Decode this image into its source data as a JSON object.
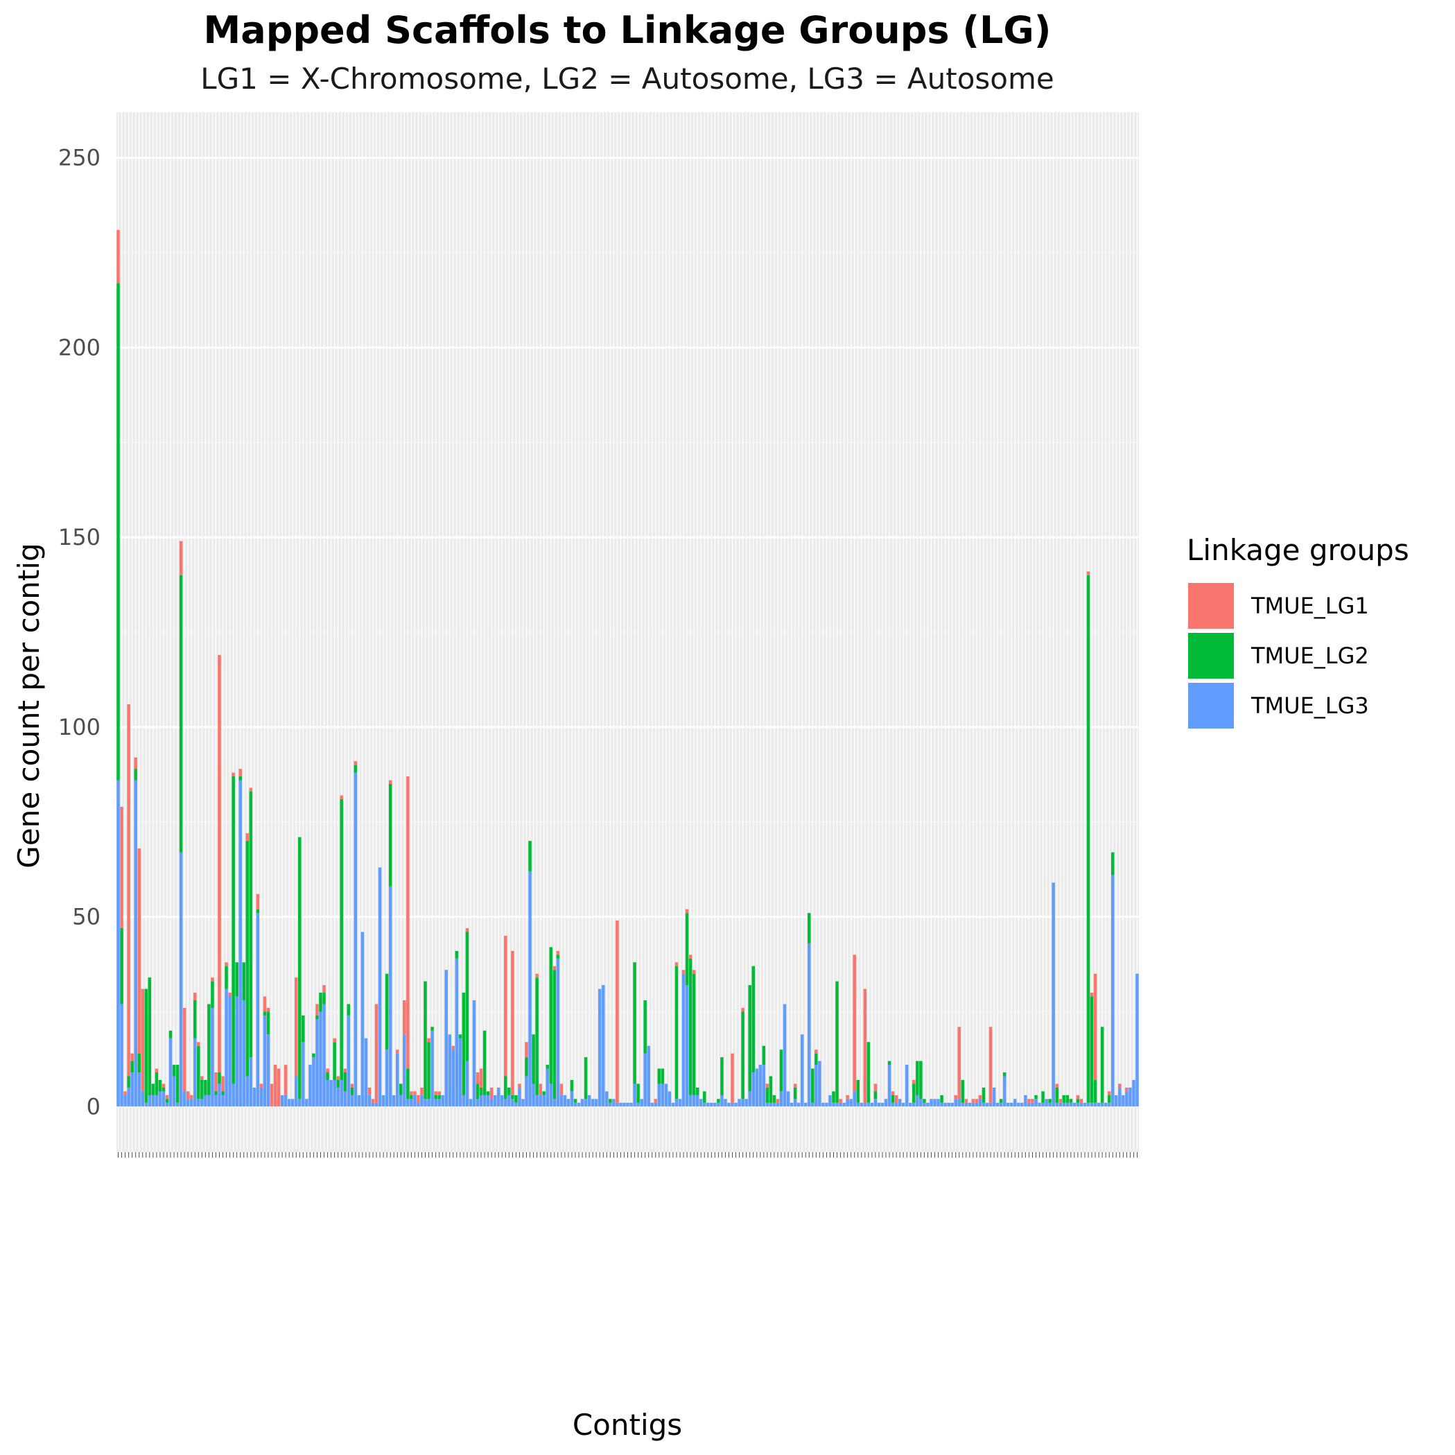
{
  "chart_data": {
    "type": "bar",
    "stacked": true,
    "title": "Mapped Scaffols to Linkage Groups (LG)",
    "subtitle": "LG1 = X-Chromosome, LG2 = Autosome, LG3 = Autosome",
    "xlabel": "Contigs",
    "ylabel": "Gene count per contig",
    "ylim": [
      -12,
      262
    ],
    "y_ticks": [
      0,
      50,
      100,
      150,
      200,
      250
    ],
    "x_tick_labels_unreadable": true,
    "grid": true,
    "legend": {
      "title": "Linkage groups",
      "position": "right",
      "entries": [
        {
          "name": "TMUE_LG1",
          "color": "#F8766D"
        },
        {
          "name": "TMUE_LG2",
          "color": "#00BA38"
        },
        {
          "name": "TMUE_LG3",
          "color": "#619CFF"
        }
      ]
    },
    "series": [
      {
        "name": "TMUE_LG3",
        "color": "#619CFF",
        "values": [
          86,
          27,
          3,
          5,
          9,
          86,
          9,
          4,
          1,
          3,
          3,
          3,
          4,
          4,
          1,
          18,
          8,
          1,
          67,
          4,
          2,
          2,
          18,
          2,
          2,
          3,
          3,
          26,
          3,
          6,
          3,
          31,
          29,
          6,
          29,
          86,
          28,
          8,
          13,
          5,
          51,
          5,
          24,
          19,
          0,
          0,
          0,
          3,
          3,
          2,
          2,
          8,
          2,
          17,
          2,
          11,
          13,
          23,
          25,
          27,
          7,
          7,
          7,
          5,
          7,
          4,
          24,
          3,
          88,
          3,
          46,
          18,
          3,
          1,
          1,
          63,
          3,
          15,
          58,
          3,
          14,
          3,
          19,
          2,
          2,
          3,
          1,
          3,
          2,
          2,
          20,
          2,
          2,
          3,
          36,
          19,
          15,
          39,
          18,
          3,
          12,
          2,
          28,
          2,
          3,
          3,
          3,
          2,
          3,
          5,
          3,
          2,
          3,
          2,
          1,
          5,
          2,
          8,
          62,
          6,
          3,
          3,
          3,
          10,
          6,
          2,
          39,
          3,
          3,
          2,
          4,
          1,
          1,
          2,
          2,
          3,
          2,
          2,
          31,
          32,
          4,
          1,
          2,
          1,
          1,
          1,
          1,
          1,
          6,
          1,
          2,
          14,
          16,
          1,
          1,
          6,
          6,
          6,
          4,
          1,
          2,
          2,
          35,
          32,
          3,
          3,
          3,
          2,
          1,
          1,
          1,
          1,
          1,
          3,
          2,
          1,
          1,
          1,
          2,
          2,
          2,
          4,
          9,
          10,
          11,
          11,
          1,
          1,
          1,
          1,
          4,
          27,
          4,
          1,
          2,
          1,
          19,
          1,
          43,
          1,
          11,
          12,
          1,
          1,
          3,
          1,
          1,
          1,
          1,
          2,
          2,
          4,
          1,
          1,
          1,
          1,
          1,
          2,
          1,
          1,
          2,
          11,
          1,
          1,
          2,
          1,
          11,
          1,
          1,
          3,
          2,
          1,
          1,
          2,
          2,
          2,
          1,
          1,
          1,
          1,
          2,
          2,
          1,
          1,
          1,
          1,
          1,
          2,
          1,
          1,
          1,
          5,
          1,
          1,
          8,
          1,
          1,
          2,
          1,
          1,
          3,
          1,
          1,
          2,
          1,
          1,
          2,
          1,
          59,
          1,
          1,
          1,
          1,
          1,
          1,
          1,
          1,
          1,
          1,
          1,
          1,
          1,
          1,
          1,
          1,
          61,
          3,
          5,
          3,
          4,
          5,
          7,
          35
        ]
      },
      {
        "name": "TMUE_LG2",
        "color": "#00BA38",
        "values": [
          131,
          20,
          0,
          3,
          3,
          3,
          5,
          0,
          30,
          31,
          3,
          6,
          3,
          1,
          1,
          2,
          3,
          10,
          73,
          0,
          0,
          0,
          10,
          14,
          5,
          4,
          24,
          7,
          1,
          3,
          1,
          6,
          0,
          81,
          9,
          1,
          10,
          62,
          70,
          0,
          1,
          0,
          1,
          6,
          0,
          0,
          0,
          0,
          0,
          0,
          0,
          0,
          69,
          7,
          0,
          0,
          1,
          1,
          5,
          3,
          2,
          0,
          10,
          2,
          74,
          5,
          3,
          2,
          2,
          0,
          0,
          0,
          0,
          0,
          0,
          0,
          0,
          20,
          27,
          0,
          0,
          3,
          0,
          8,
          1,
          0,
          0,
          0,
          31,
          15,
          1,
          1,
          1,
          0,
          0,
          0,
          0,
          2,
          1,
          27,
          34,
          0,
          0,
          4,
          2,
          17,
          1,
          0,
          0,
          0,
          0,
          6,
          2,
          1,
          2,
          0,
          0,
          5,
          8,
          13,
          31,
          0,
          1,
          1,
          36,
          34,
          1,
          0,
          0,
          0,
          3,
          1,
          0,
          0,
          11,
          0,
          0,
          0,
          0,
          0,
          0,
          1,
          0,
          0,
          0,
          0,
          0,
          0,
          32,
          5,
          0,
          14,
          0,
          0,
          0,
          4,
          4,
          0,
          0,
          0,
          35,
          0,
          0,
          19,
          36,
          32,
          2,
          0,
          3,
          0,
          0,
          0,
          1,
          10,
          0,
          0,
          0,
          0,
          0,
          23,
          0,
          28,
          28,
          0,
          0,
          5,
          4,
          7,
          2,
          0,
          11,
          0,
          0,
          0,
          3,
          0,
          0,
          0,
          8,
          9,
          3,
          0,
          0,
          0,
          0,
          3,
          32,
          0,
          0,
          0,
          0,
          0,
          6,
          0,
          0,
          16,
          0,
          2,
          0,
          0,
          0,
          1,
          2,
          0,
          0,
          0,
          0,
          0,
          5,
          9,
          10,
          1,
          0,
          0,
          0,
          0,
          2,
          0,
          0,
          0,
          0,
          0,
          6,
          0,
          0,
          0,
          0,
          0,
          4,
          0,
          0,
          0,
          0,
          1,
          1,
          0,
          0,
          0,
          0,
          0,
          0,
          0,
          0,
          1,
          0,
          3,
          0,
          1,
          0,
          4,
          0,
          2,
          2,
          1,
          0,
          1,
          0,
          0,
          139,
          28,
          6,
          0,
          20,
          0,
          2,
          6
        ]
      },
      {
        "name": "TMUE_LG1",
        "color": "#F8766D",
        "values": [
          14,
          32,
          1,
          98,
          2,
          3,
          54,
          27,
          0,
          0,
          0,
          1,
          0,
          1,
          1,
          0,
          0,
          0,
          9,
          22,
          2,
          1,
          2,
          1,
          1,
          0,
          0,
          1,
          5,
          110,
          4,
          1,
          1,
          1,
          0,
          2,
          0,
          2,
          1,
          0,
          4,
          1,
          4,
          1,
          6,
          11,
          10,
          0,
          8,
          0,
          0,
          26,
          0,
          0,
          0,
          0,
          0,
          3,
          0,
          2,
          1,
          0,
          1,
          1,
          1,
          1,
          0,
          1,
          1,
          0,
          0,
          0,
          2,
          1,
          26,
          0,
          0,
          0,
          1,
          0,
          1,
          0,
          9,
          77,
          1,
          1,
          2,
          2,
          0,
          1,
          0,
          1,
          1,
          0,
          0,
          0,
          1,
          0,
          0,
          0,
          1,
          0,
          0,
          3,
          5,
          0,
          0,
          3,
          0,
          0,
          0,
          37,
          0,
          38,
          0,
          1,
          0,
          4,
          0,
          0,
          1,
          3,
          0,
          0,
          0,
          1,
          1,
          3,
          0,
          0,
          0,
          0,
          0,
          0,
          0,
          0,
          0,
          0,
          0,
          0,
          0,
          0,
          0,
          48,
          0,
          0,
          0,
          0,
          0,
          0,
          0,
          0,
          0,
          0,
          1,
          0,
          0,
          0,
          0,
          0,
          1,
          0,
          1,
          1,
          1,
          1,
          0,
          0,
          0,
          0,
          0,
          0,
          0,
          0,
          0,
          0,
          13,
          0,
          0,
          1,
          0,
          0,
          0,
          0,
          0,
          0,
          1,
          0,
          0,
          1,
          0,
          0,
          0,
          0,
          1,
          0,
          0,
          0,
          0,
          0,
          1,
          0,
          0,
          0,
          0,
          0,
          0,
          1,
          0,
          1,
          0,
          36,
          0,
          0,
          30,
          0,
          0,
          2,
          0,
          0,
          0,
          0,
          1,
          2,
          0,
          0,
          0,
          0,
          1,
          0,
          0,
          0,
          0,
          0,
          0,
          0,
          0,
          0,
          0,
          0,
          1,
          19,
          0,
          1,
          0,
          1,
          1,
          1,
          0,
          0,
          20,
          0,
          0,
          0,
          0,
          0,
          0,
          0,
          0,
          0,
          0,
          1,
          1,
          0,
          0,
          0,
          0,
          0,
          0,
          1,
          1,
          0,
          0,
          0,
          0,
          1,
          1,
          0,
          1,
          1,
          28,
          0,
          0,
          0,
          1,
          0,
          0,
          1,
          0,
          1,
          0,
          0,
          0,
          0,
          0,
          0,
          0,
          3,
          0,
          0,
          0,
          1,
          1,
          0,
          0,
          1,
          1,
          1,
          0,
          0,
          0,
          0,
          0,
          13,
          6,
          1,
          1,
          0,
          1,
          5,
          0
        ]
      }
    ]
  }
}
